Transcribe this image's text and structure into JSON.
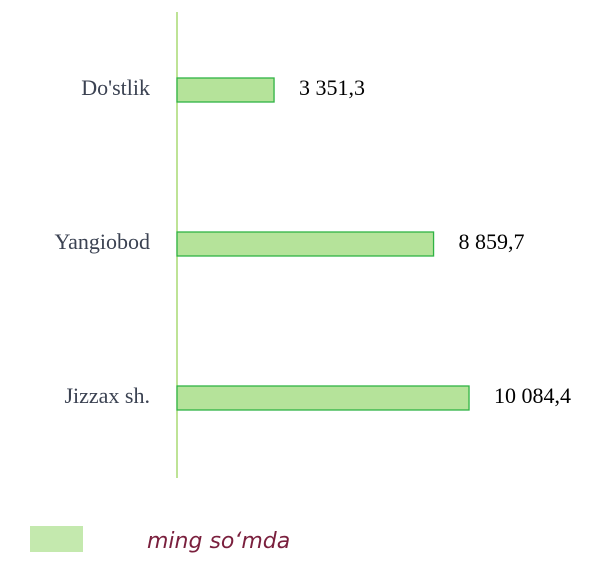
{
  "chart_data": {
    "type": "barh",
    "categories": [
      "Do'stlik",
      "Yangiobod",
      "Jizzax sh."
    ],
    "series": [
      {
        "name": "ming so‘mda",
        "color": "#b5e39a",
        "values": [
          3351.3,
          8859.7,
          10084.4
        ],
        "value_labels": [
          "3 351,3",
          "8 859,7",
          "10 084,4"
        ]
      }
    ],
    "xlim": [
      0,
      12000
    ]
  }
}
